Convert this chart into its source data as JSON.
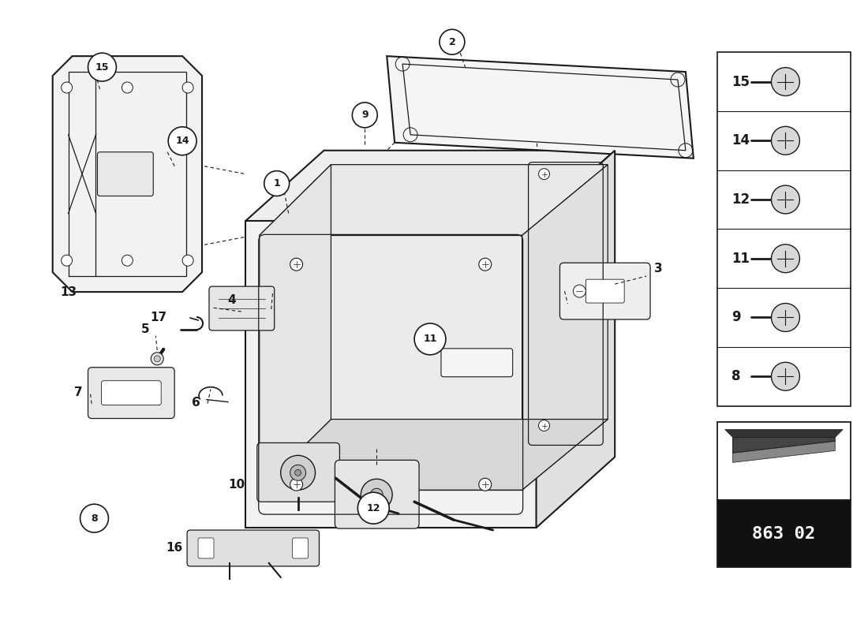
{
  "bg_color": "#ffffff",
  "line_color": "#1a1a1a",
  "part_number": "863 02",
  "fastener_labels": [
    "15",
    "14",
    "12",
    "11",
    "9",
    "8"
  ]
}
